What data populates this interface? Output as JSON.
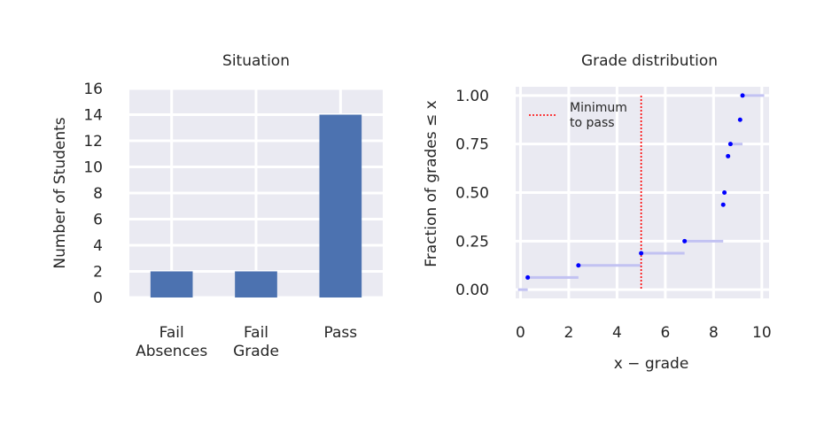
{
  "chart_data": [
    {
      "type": "bar",
      "title": "Situation",
      "xlabel": "",
      "ylabel": "Number of Students",
      "categories": [
        "Fail\nAbsences",
        "Fail\nGrade",
        "Pass"
      ],
      "values": [
        2,
        2,
        14
      ],
      "ylim": [
        0,
        16
      ],
      "yticks": [
        "0",
        "2",
        "4",
        "6",
        "8",
        "10",
        "12",
        "14",
        "16"
      ],
      "grid": true,
      "bar_color": "#4c72b0",
      "background_color": "#eaeaf2"
    },
    {
      "type": "scatter",
      "title": "Grade distribution",
      "xlabel": "x − grade",
      "ylabel": "Fraction of grades ≤ x",
      "xlim": [
        -0.2,
        10.3
      ],
      "ylim": [
        -0.045,
        1.045
      ],
      "xticks": [
        "0",
        "2",
        "4",
        "6",
        "8",
        "10"
      ],
      "yticks": [
        "0.00",
        "0.25",
        "0.50",
        "0.75",
        "1.00"
      ],
      "grid": true,
      "background_color": "#eaeaf2",
      "step_color": "#c2c2f2",
      "point_color": "#0000ff",
      "steps": [
        {
          "x0": -0.1,
          "x1": 0.3,
          "y": 0.0
        },
        {
          "x0": 0.3,
          "x1": 2.4,
          "y": 0.0625
        },
        {
          "x0": 2.4,
          "x1": 5.0,
          "y": 0.125
        },
        {
          "x0": 5.0,
          "x1": 6.8,
          "y": 0.1875
        },
        {
          "x0": 6.8,
          "x1": 8.4,
          "y": 0.25
        },
        {
          "x0": 8.7,
          "x1": 9.2,
          "y": 0.75
        },
        {
          "x0": 9.2,
          "x1": 10.1,
          "y": 1.0
        }
      ],
      "points": [
        {
          "x": 0.3,
          "y": 0.0625
        },
        {
          "x": 2.4,
          "y": 0.125
        },
        {
          "x": 5.0,
          "y": 0.1875
        },
        {
          "x": 6.8,
          "y": 0.25
        },
        {
          "x": 8.4,
          "y": 0.4375
        },
        {
          "x": 8.45,
          "y": 0.5
        },
        {
          "x": 8.6,
          "y": 0.6875
        },
        {
          "x": 8.7,
          "y": 0.75
        },
        {
          "x": 9.1,
          "y": 0.875
        },
        {
          "x": 9.2,
          "y": 1.0
        }
      ],
      "threshold": {
        "x": 5,
        "label": "Minimum to pass",
        "color": "#ff0000"
      },
      "legend": {
        "entries": [
          "Minimum\nto pass"
        ],
        "placement": "top-left"
      }
    }
  ]
}
